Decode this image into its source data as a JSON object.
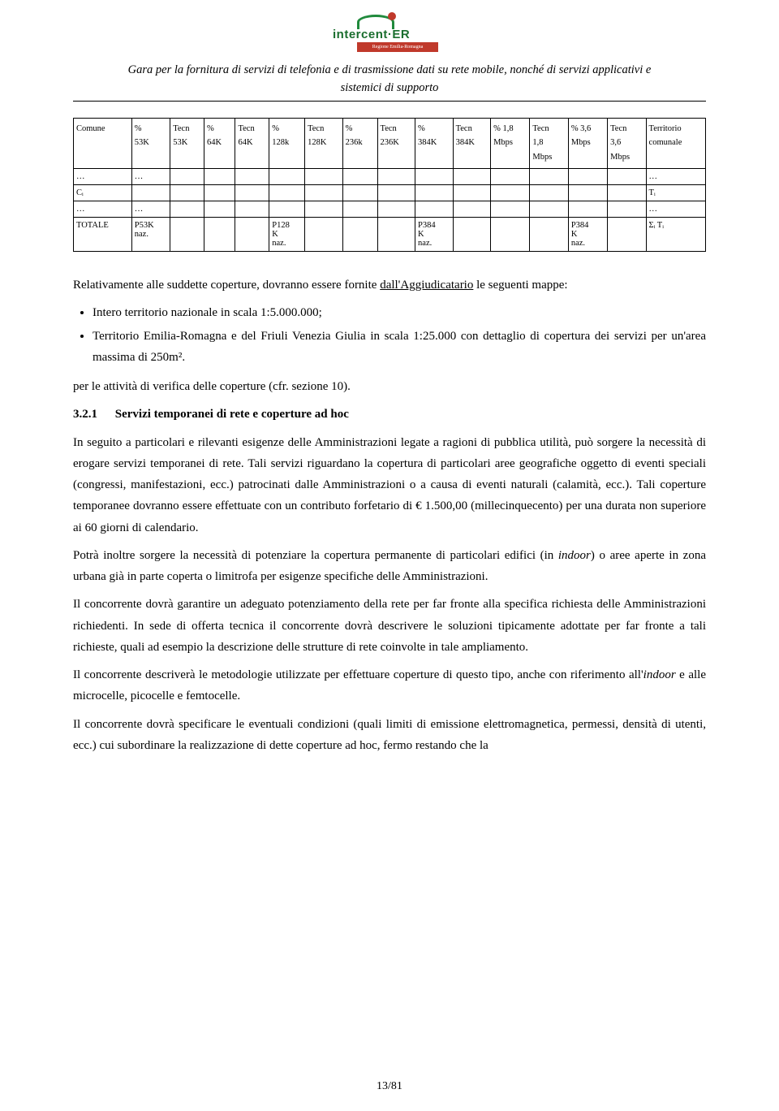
{
  "logo": {
    "name": "intercent·ER",
    "sub": "Regione Emilia-Romagna"
  },
  "header": {
    "title_line1": "Gara per la fornitura di servizi di telefonia e di trasmissione dati su rete mobile, nonché di servizi applicativi e",
    "title_line2": "sistemici di supporto"
  },
  "table": {
    "headers": {
      "c1": "Comune",
      "c2a": "%",
      "c2b": "53K",
      "c3a": "Tecn",
      "c3b": "53K",
      "c4a": "%",
      "c4b": "64K",
      "c5a": "Tecn",
      "c5b": "64K",
      "c6a": "%",
      "c6b": "128k",
      "c7a": "Tecn",
      "c7b": "128K",
      "c8a": "%",
      "c8b": "236k",
      "c9a": "Tecn",
      "c9b": "236K",
      "c10a": "%",
      "c10b": "384K",
      "c11a": "Tecn",
      "c11b": "384K",
      "c12a": "% 1,8",
      "c12b": "Mbps",
      "c13a": "Tecn",
      "c13b": "1,8",
      "c13c": "Mbps",
      "c14a": "% 3,6",
      "c14b": "Mbps",
      "c15a": "Tecn",
      "c15b": "3,6",
      "c15c": "Mbps",
      "c16a": "Territorio",
      "c16b": "comunale"
    },
    "row_dots_1": {
      "c1": "…",
      "c2": "…",
      "c16": "…"
    },
    "row_ci": {
      "c1": "Cᵢ",
      "c16": "Tᵢ"
    },
    "row_dots_2": {
      "c1": "…",
      "c2": "…",
      "c16": "…"
    },
    "row_totale": {
      "c1": "TOTALE",
      "c2a": "P53K",
      "c2b": "naz.",
      "c6a": "P128",
      "c6b": "K",
      "c6c": "naz.",
      "c10a": "P384",
      "c10b": "K",
      "c10c": "naz.",
      "c14a": "P384",
      "c14b": "K",
      "c14c": "naz.",
      "c16": "Σᵢ Tᵢ"
    }
  },
  "body": {
    "p1_a": "Relativamente alle suddette coperture, dovranno essere fornite ",
    "p1_b": "dall'Aggiudicatario",
    "p1_c": " le seguenti mappe:",
    "li1": "Intero territorio nazionale in scala 1:5.000.000;",
    "li2": "Territorio Emilia-Romagna e del Friuli Venezia Giulia in scala 1:25.000 con dettaglio di copertura dei servizi per un'area massima di 250m².",
    "p2": "per le attività di verifica delle coperture (cfr. sezione 10).",
    "sec_num": "3.2.1",
    "sec_title": "Servizi temporanei di rete e coperture ad hoc",
    "p3": "In seguito a particolari e rilevanti esigenze delle Amministrazioni legate a ragioni di pubblica utilità, può sorgere la necessità di erogare servizi temporanei di rete. Tali servizi riguardano la copertura di particolari aree geografiche oggetto di eventi speciali (congressi, manifestazioni, ecc.) patrocinati dalle Amministrazioni o a causa di eventi naturali (calamità, ecc.). Tali coperture temporanee dovranno essere effettuate con un contributo forfetario di € 1.500,00 (millecinquecento) per una durata non superiore ai 60 giorni di calendario.",
    "p4_a": "Potrà inoltre sorgere la necessità di potenziare la copertura permanente di particolari edifici (in ",
    "p4_b": "indoor",
    "p4_c": ") o aree aperte in zona urbana già in parte coperta o limitrofa per esigenze specifiche delle Amministrazioni.",
    "p5": "Il concorrente dovrà garantire un adeguato potenziamento della rete per far fronte alla specifica richiesta delle Amministrazioni richiedenti. In sede di offerta tecnica il concorrente dovrà descrivere le soluzioni tipicamente adottate per far fronte a tali richieste, quali ad esempio la descrizione delle strutture di rete coinvolte in tale ampliamento.",
    "p6_a": "Il concorrente descriverà le metodologie utilizzate per effettuare coperture di questo tipo, anche con riferimento all'",
    "p6_b": "indoor",
    "p6_c": " e alle microcelle, picocelle e femtocelle.",
    "p7": "Il concorrente dovrà specificare le eventuali condizioni (quali limiti di emissione elettromagnetica, permessi, densità di utenti, ecc.) cui subordinare la realizzazione di dette coperture ad hoc, fermo restando che la"
  },
  "footer": {
    "page": "13/81"
  }
}
